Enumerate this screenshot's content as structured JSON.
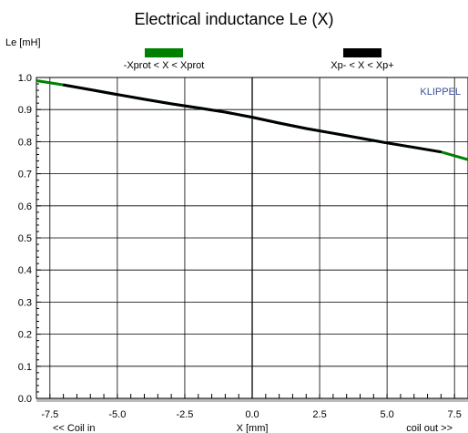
{
  "chart_data": {
    "type": "line",
    "title": "Electrical inductance Le (X)",
    "ylabel": "Le [mH]",
    "xlabel": "X [mm]",
    "x_left_note": "<< Coil in",
    "x_right_note": "coil out >>",
    "watermark": "KLIPPEL",
    "xlim": [
      -8.0,
      8.0
    ],
    "ylim": [
      0.0,
      1.0
    ],
    "xticks": [
      -7.5,
      -5.0,
      -2.5,
      0.0,
      2.5,
      5.0,
      7.5
    ],
    "xtick_labels": [
      "-7.5",
      "-5.0",
      "-2.5",
      "0.0",
      "2.5",
      "5.0",
      "7.5"
    ],
    "yticks": [
      0.0,
      0.1,
      0.2,
      0.3,
      0.4,
      0.5,
      0.6,
      0.7,
      0.8,
      0.9,
      1.0
    ],
    "ytick_labels": [
      "0.0",
      "0.1",
      "0.2",
      "0.3",
      "0.4",
      "0.5",
      "0.6",
      "0.7",
      "0.8",
      "0.9",
      "1.0"
    ],
    "grid": true,
    "legend_placement": "top",
    "series": [
      {
        "name": "-Xprot < X < Xprot",
        "color": "#008000",
        "x": [
          -8.0,
          -7.0,
          -6.0,
          -5.0,
          -4.0,
          -3.0,
          -2.0,
          -1.0,
          0.0,
          1.0,
          2.0,
          3.0,
          4.0,
          5.0,
          6.0,
          7.0,
          8.0
        ],
        "y": [
          0.99,
          0.977,
          0.962,
          0.947,
          0.932,
          0.918,
          0.905,
          0.892,
          0.876,
          0.858,
          0.841,
          0.826,
          0.811,
          0.796,
          0.782,
          0.768,
          0.744
        ]
      },
      {
        "name": "Xp- < X < Xp+",
        "color": "#000000",
        "x": [
          -7.0,
          -6.0,
          -5.0,
          -4.0,
          -3.0,
          -2.0,
          -1.0,
          0.0,
          1.0,
          2.0,
          3.0,
          4.0,
          5.0,
          6.0,
          7.0
        ],
        "y": [
          0.977,
          0.962,
          0.947,
          0.932,
          0.918,
          0.905,
          0.892,
          0.876,
          0.858,
          0.841,
          0.826,
          0.811,
          0.796,
          0.782,
          0.768
        ]
      }
    ]
  }
}
